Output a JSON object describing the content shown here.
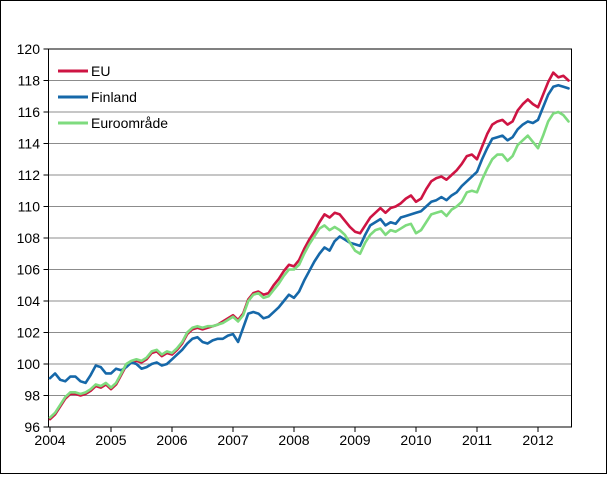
{
  "chart_data": {
    "type": "line",
    "title": "",
    "x_unit": "month",
    "x_start": "2004-01",
    "x_end": "2012-07",
    "x_tick_labels": [
      "2004",
      "2005",
      "2006",
      "2007",
      "2008",
      "2009",
      "2010",
      "2011",
      "2012"
    ],
    "y_ticks": [
      96,
      98,
      100,
      102,
      104,
      106,
      108,
      110,
      112,
      114,
      116,
      118,
      120
    ],
    "ylim": [
      96,
      120
    ],
    "grid": true,
    "grid_color": "#8c8c8c",
    "axis_color": "#000000",
    "background_color": "#ffffff",
    "legend_position": "top-left-inside",
    "legend_entries": [
      "EU",
      "Finland",
      "Euroområde"
    ],
    "series": [
      {
        "name": "EU",
        "color": "#ce1443",
        "values": [
          96.5,
          96.8,
          97.3,
          97.8,
          98.1,
          98.1,
          98.0,
          98.1,
          98.3,
          98.6,
          98.5,
          98.7,
          98.4,
          98.7,
          99.3,
          99.9,
          100.1,
          100.2,
          100.1,
          100.3,
          100.7,
          100.8,
          100.5,
          100.7,
          100.6,
          100.9,
          101.3,
          101.9,
          102.2,
          102.3,
          102.2,
          102.3,
          102.4,
          102.5,
          102.7,
          102.9,
          103.1,
          102.8,
          103.2,
          104.1,
          104.5,
          104.6,
          104.4,
          104.5,
          105.0,
          105.4,
          105.9,
          106.3,
          106.2,
          106.6,
          107.3,
          107.9,
          108.4,
          109.0,
          109.5,
          109.3,
          109.6,
          109.5,
          109.1,
          108.7,
          108.4,
          108.3,
          108.8,
          109.3,
          109.6,
          109.9,
          109.6,
          109.9,
          110.0,
          110.2,
          110.5,
          110.7,
          110.3,
          110.5,
          111.1,
          111.6,
          111.8,
          111.9,
          111.7,
          112.0,
          112.3,
          112.7,
          113.2,
          113.3,
          113.0,
          113.8,
          114.6,
          115.2,
          115.4,
          115.5,
          115.2,
          115.4,
          116.1,
          116.5,
          116.8,
          116.5,
          116.3,
          117.1,
          117.9,
          118.5,
          118.2,
          118.3,
          118.0
        ]
      },
      {
        "name": "Finland",
        "color": "#1668a9",
        "values": [
          99.1,
          99.4,
          99.0,
          98.9,
          99.2,
          99.2,
          98.9,
          98.8,
          99.3,
          99.9,
          99.8,
          99.4,
          99.4,
          99.7,
          99.6,
          99.8,
          100.1,
          100.0,
          99.7,
          99.8,
          100.0,
          100.1,
          99.9,
          100.0,
          100.3,
          100.6,
          100.9,
          101.3,
          101.6,
          101.7,
          101.4,
          101.3,
          101.5,
          101.6,
          101.6,
          101.8,
          101.9,
          101.4,
          102.3,
          103.2,
          103.3,
          103.2,
          102.9,
          103.0,
          103.3,
          103.6,
          104.0,
          104.4,
          104.2,
          104.6,
          105.3,
          105.9,
          106.5,
          107.0,
          107.4,
          107.2,
          107.8,
          108.1,
          107.9,
          107.7,
          107.6,
          107.5,
          108.2,
          108.8,
          109.0,
          109.2,
          108.8,
          109.0,
          108.9,
          109.3,
          109.4,
          109.5,
          109.6,
          109.7,
          110.0,
          110.3,
          110.4,
          110.6,
          110.4,
          110.7,
          110.9,
          111.3,
          111.6,
          111.9,
          112.2,
          113.0,
          113.7,
          114.3,
          114.4,
          114.5,
          114.2,
          114.4,
          114.9,
          115.2,
          115.4,
          115.3,
          115.5,
          116.3,
          117.1,
          117.6,
          117.7,
          117.6,
          117.5
        ]
      },
      {
        "name": "Euroområde",
        "color": "#7edb7e",
        "values": [
          96.6,
          96.9,
          97.4,
          97.9,
          98.2,
          98.2,
          98.1,
          98.2,
          98.4,
          98.7,
          98.6,
          98.8,
          98.5,
          98.8,
          99.4,
          100.0,
          100.2,
          100.3,
          100.2,
          100.4,
          100.8,
          100.9,
          100.6,
          100.8,
          100.7,
          101.0,
          101.4,
          102.0,
          102.3,
          102.4,
          102.3,
          102.4,
          102.4,
          102.5,
          102.6,
          102.8,
          103.0,
          102.7,
          103.1,
          104.0,
          104.4,
          104.5,
          104.2,
          104.3,
          104.7,
          105.1,
          105.6,
          106.0,
          106.0,
          106.3,
          107.0,
          107.6,
          108.1,
          108.6,
          108.8,
          108.5,
          108.7,
          108.5,
          108.2,
          107.7,
          107.2,
          107.0,
          107.7,
          108.2,
          108.5,
          108.6,
          108.2,
          108.5,
          108.4,
          108.6,
          108.8,
          108.9,
          108.3,
          108.5,
          109.0,
          109.5,
          109.6,
          109.7,
          109.4,
          109.8,
          110.0,
          110.3,
          110.9,
          111.0,
          110.9,
          111.7,
          112.4,
          113.0,
          113.3,
          113.3,
          112.9,
          113.2,
          113.9,
          114.2,
          114.5,
          114.1,
          113.7,
          114.5,
          115.4,
          115.9,
          116.0,
          115.8,
          115.4
        ]
      }
    ]
  }
}
